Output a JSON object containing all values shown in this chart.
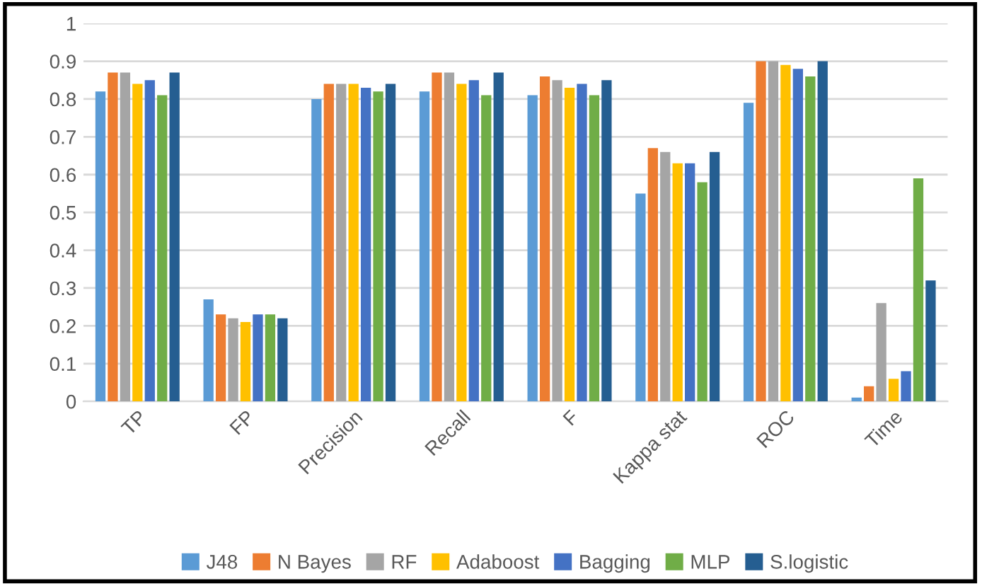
{
  "chart_data": {
    "type": "bar",
    "categories": [
      "TP",
      "FP",
      "Precision",
      "Recall",
      "F",
      "Kappa stat",
      "ROC",
      "Time"
    ],
    "series": [
      {
        "name": "J48",
        "color": "#5b9bd5",
        "values": [
          0.82,
          0.27,
          0.8,
          0.82,
          0.81,
          0.55,
          0.79,
          0.01
        ]
      },
      {
        "name": "N Bayes",
        "color": "#ed7d31",
        "values": [
          0.87,
          0.23,
          0.84,
          0.87,
          0.86,
          0.67,
          0.9,
          0.04
        ]
      },
      {
        "name": "RF",
        "color": "#a5a5a5",
        "values": [
          0.87,
          0.22,
          0.84,
          0.87,
          0.85,
          0.66,
          0.9,
          0.26
        ]
      },
      {
        "name": "Adaboost",
        "color": "#ffc000",
        "values": [
          0.84,
          0.21,
          0.84,
          0.84,
          0.83,
          0.63,
          0.89,
          0.06
        ]
      },
      {
        "name": "Bagging",
        "color": "#4472c4",
        "values": [
          0.85,
          0.23,
          0.83,
          0.85,
          0.84,
          0.63,
          0.88,
          0.08
        ]
      },
      {
        "name": "MLP",
        "color": "#70ad47",
        "values": [
          0.81,
          0.23,
          0.82,
          0.81,
          0.81,
          0.58,
          0.86,
          0.59
        ]
      },
      {
        "name": "S.logistic",
        "color": "#255e91",
        "values": [
          0.87,
          0.22,
          0.84,
          0.87,
          0.85,
          0.66,
          0.9,
          0.32
        ]
      }
    ],
    "ylim": [
      0,
      1
    ],
    "yticks": [
      0,
      0.1,
      0.2,
      0.3,
      0.4,
      0.5,
      0.6,
      0.7,
      0.8,
      0.9,
      1
    ],
    "grid": "y",
    "legend": "bottom"
  }
}
